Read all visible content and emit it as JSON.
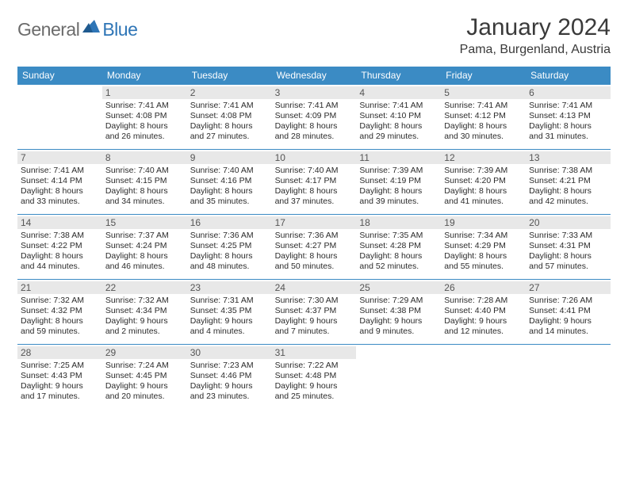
{
  "logo": {
    "text_gray": "General",
    "text_blue": "Blue"
  },
  "title": "January 2024",
  "location": "Pama, Burgenland, Austria",
  "colors": {
    "header_bg": "#3b8bc4",
    "header_fg": "#ffffff",
    "daynum_bg": "#e8e8e8",
    "logo_gray": "#6b6b6b",
    "logo_blue": "#2e75b6",
    "text": "#2b2b2b",
    "border": "#3b8bc4"
  },
  "day_names": [
    "Sunday",
    "Monday",
    "Tuesday",
    "Wednesday",
    "Thursday",
    "Friday",
    "Saturday"
  ],
  "weeks": [
    [
      {
        "n": "",
        "sr": "",
        "ss": "",
        "dl": ""
      },
      {
        "n": "1",
        "sr": "Sunrise: 7:41 AM",
        "ss": "Sunset: 4:08 PM",
        "dl": "Daylight: 8 hours and 26 minutes."
      },
      {
        "n": "2",
        "sr": "Sunrise: 7:41 AM",
        "ss": "Sunset: 4:08 PM",
        "dl": "Daylight: 8 hours and 27 minutes."
      },
      {
        "n": "3",
        "sr": "Sunrise: 7:41 AM",
        "ss": "Sunset: 4:09 PM",
        "dl": "Daylight: 8 hours and 28 minutes."
      },
      {
        "n": "4",
        "sr": "Sunrise: 7:41 AM",
        "ss": "Sunset: 4:10 PM",
        "dl": "Daylight: 8 hours and 29 minutes."
      },
      {
        "n": "5",
        "sr": "Sunrise: 7:41 AM",
        "ss": "Sunset: 4:12 PM",
        "dl": "Daylight: 8 hours and 30 minutes."
      },
      {
        "n": "6",
        "sr": "Sunrise: 7:41 AM",
        "ss": "Sunset: 4:13 PM",
        "dl": "Daylight: 8 hours and 31 minutes."
      }
    ],
    [
      {
        "n": "7",
        "sr": "Sunrise: 7:41 AM",
        "ss": "Sunset: 4:14 PM",
        "dl": "Daylight: 8 hours and 33 minutes."
      },
      {
        "n": "8",
        "sr": "Sunrise: 7:40 AM",
        "ss": "Sunset: 4:15 PM",
        "dl": "Daylight: 8 hours and 34 minutes."
      },
      {
        "n": "9",
        "sr": "Sunrise: 7:40 AM",
        "ss": "Sunset: 4:16 PM",
        "dl": "Daylight: 8 hours and 35 minutes."
      },
      {
        "n": "10",
        "sr": "Sunrise: 7:40 AM",
        "ss": "Sunset: 4:17 PM",
        "dl": "Daylight: 8 hours and 37 minutes."
      },
      {
        "n": "11",
        "sr": "Sunrise: 7:39 AM",
        "ss": "Sunset: 4:19 PM",
        "dl": "Daylight: 8 hours and 39 minutes."
      },
      {
        "n": "12",
        "sr": "Sunrise: 7:39 AM",
        "ss": "Sunset: 4:20 PM",
        "dl": "Daylight: 8 hours and 41 minutes."
      },
      {
        "n": "13",
        "sr": "Sunrise: 7:38 AM",
        "ss": "Sunset: 4:21 PM",
        "dl": "Daylight: 8 hours and 42 minutes."
      }
    ],
    [
      {
        "n": "14",
        "sr": "Sunrise: 7:38 AM",
        "ss": "Sunset: 4:22 PM",
        "dl": "Daylight: 8 hours and 44 minutes."
      },
      {
        "n": "15",
        "sr": "Sunrise: 7:37 AM",
        "ss": "Sunset: 4:24 PM",
        "dl": "Daylight: 8 hours and 46 minutes."
      },
      {
        "n": "16",
        "sr": "Sunrise: 7:36 AM",
        "ss": "Sunset: 4:25 PM",
        "dl": "Daylight: 8 hours and 48 minutes."
      },
      {
        "n": "17",
        "sr": "Sunrise: 7:36 AM",
        "ss": "Sunset: 4:27 PM",
        "dl": "Daylight: 8 hours and 50 minutes."
      },
      {
        "n": "18",
        "sr": "Sunrise: 7:35 AM",
        "ss": "Sunset: 4:28 PM",
        "dl": "Daylight: 8 hours and 52 minutes."
      },
      {
        "n": "19",
        "sr": "Sunrise: 7:34 AM",
        "ss": "Sunset: 4:29 PM",
        "dl": "Daylight: 8 hours and 55 minutes."
      },
      {
        "n": "20",
        "sr": "Sunrise: 7:33 AM",
        "ss": "Sunset: 4:31 PM",
        "dl": "Daylight: 8 hours and 57 minutes."
      }
    ],
    [
      {
        "n": "21",
        "sr": "Sunrise: 7:32 AM",
        "ss": "Sunset: 4:32 PM",
        "dl": "Daylight: 8 hours and 59 minutes."
      },
      {
        "n": "22",
        "sr": "Sunrise: 7:32 AM",
        "ss": "Sunset: 4:34 PM",
        "dl": "Daylight: 9 hours and 2 minutes."
      },
      {
        "n": "23",
        "sr": "Sunrise: 7:31 AM",
        "ss": "Sunset: 4:35 PM",
        "dl": "Daylight: 9 hours and 4 minutes."
      },
      {
        "n": "24",
        "sr": "Sunrise: 7:30 AM",
        "ss": "Sunset: 4:37 PM",
        "dl": "Daylight: 9 hours and 7 minutes."
      },
      {
        "n": "25",
        "sr": "Sunrise: 7:29 AM",
        "ss": "Sunset: 4:38 PM",
        "dl": "Daylight: 9 hours and 9 minutes."
      },
      {
        "n": "26",
        "sr": "Sunrise: 7:28 AM",
        "ss": "Sunset: 4:40 PM",
        "dl": "Daylight: 9 hours and 12 minutes."
      },
      {
        "n": "27",
        "sr": "Sunrise: 7:26 AM",
        "ss": "Sunset: 4:41 PM",
        "dl": "Daylight: 9 hours and 14 minutes."
      }
    ],
    [
      {
        "n": "28",
        "sr": "Sunrise: 7:25 AM",
        "ss": "Sunset: 4:43 PM",
        "dl": "Daylight: 9 hours and 17 minutes."
      },
      {
        "n": "29",
        "sr": "Sunrise: 7:24 AM",
        "ss": "Sunset: 4:45 PM",
        "dl": "Daylight: 9 hours and 20 minutes."
      },
      {
        "n": "30",
        "sr": "Sunrise: 7:23 AM",
        "ss": "Sunset: 4:46 PM",
        "dl": "Daylight: 9 hours and 23 minutes."
      },
      {
        "n": "31",
        "sr": "Sunrise: 7:22 AM",
        "ss": "Sunset: 4:48 PM",
        "dl": "Daylight: 9 hours and 25 minutes."
      },
      {
        "n": "",
        "sr": "",
        "ss": "",
        "dl": ""
      },
      {
        "n": "",
        "sr": "",
        "ss": "",
        "dl": ""
      },
      {
        "n": "",
        "sr": "",
        "ss": "",
        "dl": ""
      }
    ]
  ]
}
